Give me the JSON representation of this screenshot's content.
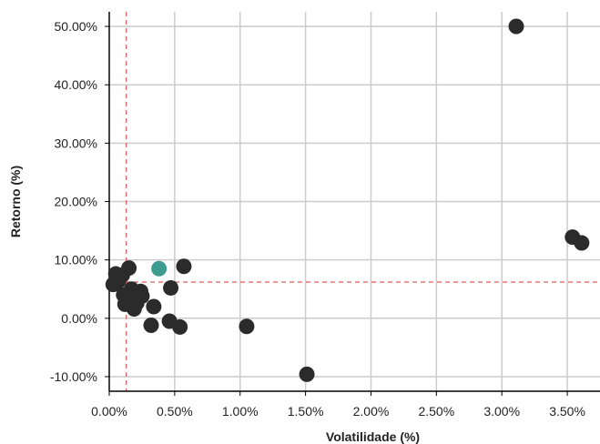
{
  "chart_data": {
    "type": "scatter",
    "title": "",
    "xlabel": "Volatilidade (%)",
    "ylabel": "Retorno (%)",
    "xlim": [
      0.0,
      3.75
    ],
    "ylim": [
      -12.5,
      52.5
    ],
    "x_ticks": [
      0.0,
      0.5,
      1.0,
      1.5,
      2.0,
      2.5,
      3.0,
      3.5
    ],
    "x_tick_labels": [
      "0.00%",
      "0.50%",
      "1.00%",
      "1.50%",
      "2.00%",
      "2.50%",
      "3.00%",
      "3.50%"
    ],
    "y_ticks": [
      -10,
      0,
      10,
      20,
      30,
      40,
      50
    ],
    "y_tick_labels": [
      "-10.00%",
      "0.00%",
      "10.00%",
      "20.00%",
      "30.00%",
      "40.00%",
      "50.00%"
    ],
    "grid": true,
    "reference_lines": {
      "x": 0.13,
      "y": 6.2,
      "color": "#e05a5a",
      "style": "dashed"
    },
    "colors": {
      "points": "#2b2b2b",
      "highlight": "#3d9b8f",
      "grid": "#cccccc",
      "axis": "#000000"
    },
    "series": [
      {
        "color": "#2b2b2b",
        "points": [
          {
            "x": 0.03,
            "y": 5.8
          },
          {
            "x": 0.05,
            "y": 7.6
          },
          {
            "x": 0.07,
            "y": 6.4
          },
          {
            "x": 0.1,
            "y": 7.4
          },
          {
            "x": 0.11,
            "y": 4.0
          },
          {
            "x": 0.12,
            "y": 2.4
          },
          {
            "x": 0.15,
            "y": 8.6
          },
          {
            "x": 0.17,
            "y": 5.0
          },
          {
            "x": 0.18,
            "y": 3.6
          },
          {
            "x": 0.19,
            "y": 1.6
          },
          {
            "x": 0.21,
            "y": 2.6
          },
          {
            "x": 0.24,
            "y": 4.6
          },
          {
            "x": 0.25,
            "y": 3.8
          },
          {
            "x": 0.32,
            "y": -1.2
          },
          {
            "x": 0.34,
            "y": 2.0
          },
          {
            "x": 0.46,
            "y": -0.5
          },
          {
            "x": 0.47,
            "y": 5.2
          },
          {
            "x": 0.54,
            "y": -1.5
          },
          {
            "x": 0.57,
            "y": 8.9
          },
          {
            "x": 1.05,
            "y": -1.4
          },
          {
            "x": 1.51,
            "y": -9.6
          },
          {
            "x": 3.11,
            "y": 50.0
          },
          {
            "x": 3.54,
            "y": 13.9
          },
          {
            "x": 3.61,
            "y": 12.9
          }
        ]
      },
      {
        "color": "#3d9b8f",
        "points": [
          {
            "x": 0.38,
            "y": 8.5
          }
        ]
      }
    ]
  }
}
